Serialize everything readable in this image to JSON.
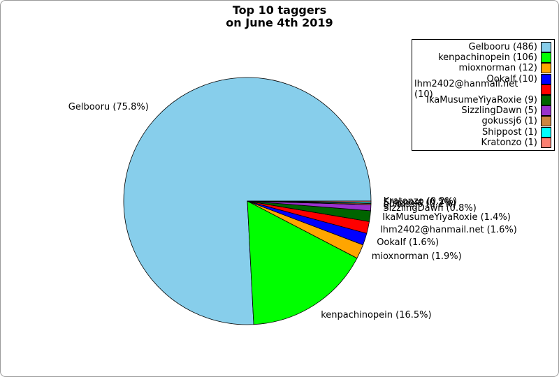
{
  "chart_data": {
    "type": "pie",
    "title": "Top 10 taggers",
    "subtitle": "on June 4th 2019",
    "series": [
      {
        "name": "Gelbooru",
        "count": 486,
        "pct_label": "75.8%",
        "color": "#87CEEB"
      },
      {
        "name": "kenpachinopein",
        "count": 106,
        "pct_label": "16.5%",
        "color": "#00FF00"
      },
      {
        "name": "mioxnorman",
        "count": 12,
        "pct_label": "1.9%",
        "color": "#FFA500"
      },
      {
        "name": "Ookalf",
        "count": 10,
        "pct_label": "1.6%",
        "color": "#0000FF"
      },
      {
        "name": "lhm2402@hanmail.net",
        "count": 10,
        "pct_label": "1.6%",
        "color": "#FF0000"
      },
      {
        "name": "IkaMusumeYiyaRoxie",
        "count": 9,
        "pct_label": "1.4%",
        "color": "#006400"
      },
      {
        "name": "SizzlingDawn",
        "count": 5,
        "pct_label": "0.8%",
        "color": "#9932CC"
      },
      {
        "name": "gokussj6",
        "count": 1,
        "pct_label": "0.2%",
        "color": "#CD853F"
      },
      {
        "name": "Shippost",
        "count": 1,
        "pct_label": "0.2%",
        "color": "#00FFFF"
      },
      {
        "name": "Kratonzo",
        "count": 1,
        "pct_label": "0.2%",
        "color": "#FA8072"
      }
    ],
    "start_angle_deg": 0,
    "direction": "counterclockwise",
    "center": {
      "x": 353,
      "y": 287
    },
    "radius": 177,
    "label_radius_factor": 1.1,
    "label_paint_order": [
      0,
      1,
      2,
      3,
      4,
      5,
      6,
      7,
      9,
      8
    ],
    "legend": {
      "position": "upper right",
      "entry_format": "name (count)",
      "marker_side": "right"
    },
    "grid": false
  }
}
